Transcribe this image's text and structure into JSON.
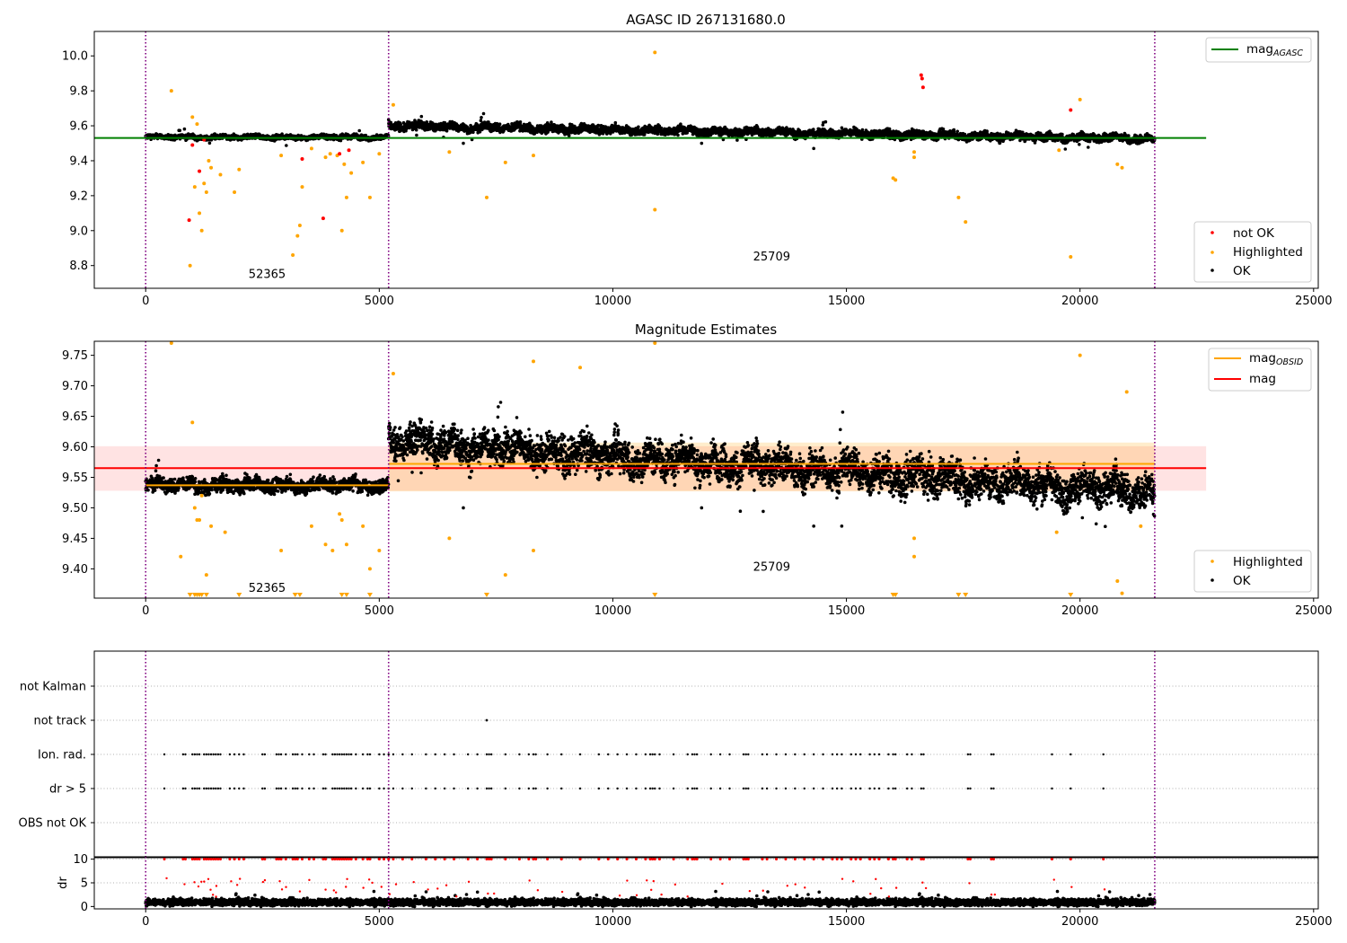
{
  "figure_title": "AGASC ID 267131680.0",
  "colors": {
    "ok": "#000000",
    "highlighted": "#ffa500",
    "not_ok": "#ff0000",
    "mag_agasc_line": "#008000",
    "mag_obsid_line": "#ffa500",
    "mag_line": "#ff0000",
    "obs_boundary": "#800080"
  },
  "chart_data": [
    {
      "type": "scatter",
      "title": "AGASC ID 267131680.0",
      "xlim": [
        -1100,
        25100
      ],
      "ylim": [
        8.67,
        10.14
      ],
      "xticks": [
        0,
        5000,
        10000,
        15000,
        20000,
        25000
      ],
      "yticks": [
        8.8,
        9.0,
        9.2,
        9.4,
        9.6,
        9.8,
        10.0
      ],
      "obs_boundaries": [
        0,
        5200,
        21600
      ],
      "obs_labels": [
        {
          "text": "52365",
          "x": 2600,
          "y": 8.73
        },
        {
          "text": "25709",
          "x": 13400,
          "y": 8.83
        }
      ],
      "reference_lines": [
        {
          "name": "mag_AGASC",
          "value": 9.53,
          "x": [
            -1100,
            22700
          ]
        }
      ],
      "segments": [
        {
          "x": [
            0,
            5200
          ],
          "base": 9.535,
          "spread": 0.012,
          "color": "ok"
        },
        {
          "x": [
            5200,
            21600
          ],
          "base": 9.6,
          "trend": -0.075,
          "spread": 0.02,
          "color": "ok"
        }
      ],
      "series": [
        {
          "name": "not OK",
          "points": [
            [
              930,
              9.06
            ],
            [
              1000,
              9.49
            ],
            [
              1150,
              9.34
            ],
            [
              1250,
              9.52
            ],
            [
              3350,
              9.41
            ],
            [
              3800,
              9.07
            ],
            [
              4150,
              9.44
            ],
            [
              4350,
              9.46
            ],
            [
              16600,
              9.89
            ],
            [
              16620,
              9.87
            ],
            [
              16640,
              9.82
            ],
            [
              19800,
              9.69
            ]
          ]
        },
        {
          "name": "Highlighted",
          "points": [
            [
              550,
              9.8
            ],
            [
              950,
              8.8
            ],
            [
              1000,
              9.65
            ],
            [
              1050,
              9.25
            ],
            [
              1100,
              9.61
            ],
            [
              1150,
              9.1
            ],
            [
              1200,
              9.0
            ],
            [
              1250,
              9.27
            ],
            [
              1300,
              9.22
            ],
            [
              1350,
              9.4
            ],
            [
              1400,
              9.36
            ],
            [
              1600,
              9.32
            ],
            [
              1900,
              9.22
            ],
            [
              2000,
              9.35
            ],
            [
              2900,
              9.43
            ],
            [
              3150,
              8.86
            ],
            [
              3250,
              8.97
            ],
            [
              3300,
              9.03
            ],
            [
              3350,
              9.25
            ],
            [
              3550,
              9.47
            ],
            [
              3850,
              9.42
            ],
            [
              3950,
              9.44
            ],
            [
              4100,
              9.43
            ],
            [
              4200,
              9.0
            ],
            [
              4250,
              9.38
            ],
            [
              4300,
              9.19
            ],
            [
              4400,
              9.33
            ],
            [
              4650,
              9.39
            ],
            [
              4800,
              9.19
            ],
            [
              5000,
              9.44
            ],
            [
              5300,
              9.72
            ],
            [
              6500,
              9.45
            ],
            [
              7300,
              9.19
            ],
            [
              7700,
              9.39
            ],
            [
              8300,
              9.43
            ],
            [
              10900,
              9.12
            ],
            [
              10900,
              10.02
            ],
            [
              16000,
              9.3
            ],
            [
              16050,
              9.29
            ],
            [
              16450,
              9.45
            ],
            [
              16450,
              9.42
            ],
            [
              17400,
              9.19
            ],
            [
              17550,
              9.05
            ],
            [
              19550,
              9.46
            ],
            [
              19800,
              8.85
            ],
            [
              20000,
              9.75
            ],
            [
              20800,
              9.38
            ],
            [
              20900,
              9.36
            ]
          ]
        },
        {
          "name": "OK",
          "points": [
            [
              6800,
              9.5
            ],
            [
              14300,
              9.47
            ],
            [
              11900,
              9.5
            ]
          ]
        }
      ],
      "legends": [
        {
          "position": "upper right",
          "entries": [
            "mag_AGASC"
          ]
        },
        {
          "position": "lower right",
          "entries": [
            "not OK",
            "Highlighted",
            "OK"
          ]
        }
      ]
    },
    {
      "type": "scatter",
      "title": "Magnitude Estimates",
      "xlim": [
        -1100,
        25100
      ],
      "ylim": [
        9.352,
        9.773
      ],
      "xticks": [
        0,
        5000,
        10000,
        15000,
        20000,
        25000
      ],
      "yticks": [
        9.4,
        9.45,
        9.5,
        9.55,
        9.6,
        9.65,
        9.7,
        9.75
      ],
      "obs_boundaries": [
        0,
        5200,
        21600
      ],
      "obs_labels": [
        {
          "text": "52365",
          "x": 2600,
          "y": 9.362
        },
        {
          "text": "25709",
          "x": 13400,
          "y": 9.397
        }
      ],
      "bands": [
        {
          "name": "mag",
          "x": [
            -1100,
            22700
          ],
          "y": [
            9.528,
            9.601
          ],
          "color": "mag_line"
        },
        {
          "name": "mag_OBSID 25709",
          "x": [
            5200,
            21600
          ],
          "y": [
            9.527,
            9.607
          ],
          "color": "mag_obsid_line"
        }
      ],
      "reference_lines": [
        {
          "name": "mag_OBSID",
          "value": 9.537,
          "x": [
            0,
            5200
          ]
        },
        {
          "name": "mag_OBSID",
          "value": 9.572,
          "x": [
            5200,
            21600
          ]
        },
        {
          "name": "mag",
          "value": 9.565,
          "x": [
            -1100,
            22700
          ]
        }
      ],
      "segments": [
        {
          "x": [
            0,
            5200
          ],
          "base": 9.537,
          "spread": 0.01,
          "color": "ok"
        },
        {
          "x": [
            5200,
            21600
          ],
          "base": 9.61,
          "trend": -0.085,
          "spread": 0.025,
          "color": "ok"
        }
      ],
      "series": [
        {
          "name": "Highlighted",
          "points": [
            [
              550,
              9.77
            ],
            [
              750,
              9.42
            ],
            [
              1000,
              9.64
            ],
            [
              1050,
              9.5
            ],
            [
              1100,
              9.48
            ],
            [
              1150,
              9.48
            ],
            [
              1200,
              9.52
            ],
            [
              1300,
              9.39
            ],
            [
              1400,
              9.47
            ],
            [
              1700,
              9.46
            ],
            [
              2900,
              9.43
            ],
            [
              3550,
              9.47
            ],
            [
              3850,
              9.44
            ],
            [
              4000,
              9.43
            ],
            [
              4150,
              9.49
            ],
            [
              4200,
              9.48
            ],
            [
              4300,
              9.44
            ],
            [
              4650,
              9.47
            ],
            [
              4800,
              9.4
            ],
            [
              5000,
              9.43
            ],
            [
              5300,
              9.72
            ],
            [
              6500,
              9.45
            ],
            [
              7700,
              9.39
            ],
            [
              8300,
              9.43
            ],
            [
              8300,
              9.74
            ],
            [
              9300,
              9.73
            ],
            [
              10900,
              9.77
            ],
            [
              16450,
              9.45
            ],
            [
              16450,
              9.42
            ],
            [
              19500,
              9.46
            ],
            [
              20000,
              9.75
            ],
            [
              20800,
              9.38
            ],
            [
              20900,
              9.36
            ],
            [
              21000,
              9.69
            ],
            [
              21300,
              9.47
            ]
          ]
        },
        {
          "name": "Highlighted (below axis)",
          "points": [
            [
              950,
              9.355
            ],
            [
              1050,
              9.355
            ],
            [
              1100,
              9.355
            ],
            [
              1150,
              9.355
            ],
            [
              1200,
              9.355
            ],
            [
              1300,
              9.355
            ],
            [
              2000,
              9.355
            ],
            [
              3200,
              9.355
            ],
            [
              3300,
              9.355
            ],
            [
              4200,
              9.355
            ],
            [
              4300,
              9.355
            ],
            [
              4800,
              9.355
            ],
            [
              7300,
              9.355
            ],
            [
              10900,
              9.355
            ],
            [
              16000,
              9.355
            ],
            [
              16050,
              9.355
            ],
            [
              17400,
              9.355
            ],
            [
              17550,
              9.355
            ],
            [
              19800,
              9.355
            ]
          ]
        },
        {
          "name": "OK",
          "points": [
            [
              6800,
              9.5
            ],
            [
              14300,
              9.47
            ],
            [
              14900,
              9.47
            ],
            [
              11900,
              9.5
            ]
          ]
        }
      ],
      "legends": [
        {
          "position": "upper right",
          "entries": [
            "mag_OBSID",
            "mag"
          ]
        },
        {
          "position": "lower right",
          "entries": [
            "Highlighted",
            "OK"
          ]
        }
      ]
    },
    {
      "type": "scatter",
      "title": "",
      "xlim": [
        -1100,
        25100
      ],
      "categories": [
        "not Kalman",
        "not track",
        "Ion. rad.",
        "dr > 5",
        "OBS not OK"
      ],
      "obs_boundaries": [
        0,
        5200,
        21600
      ],
      "flag_times": [
        400,
        800,
        850,
        1000,
        1050,
        1100,
        1150,
        1250,
        1300,
        1350,
        1400,
        1450,
        1500,
        1550,
        1600,
        1800,
        1900,
        2000,
        2100,
        2500,
        2550,
        2800,
        2850,
        2900,
        3000,
        3150,
        3200,
        3250,
        3350,
        3500,
        3600,
        3800,
        3850,
        4000,
        4050,
        4100,
        4150,
        4200,
        4250,
        4300,
        4350,
        4400,
        4500,
        4650,
        4750,
        4800,
        5000,
        5100,
        5200,
        5300,
        5500,
        5700,
        6000,
        6200,
        6400,
        6600,
        6900,
        7100,
        7300,
        7350,
        7400,
        7700,
        8000,
        8200,
        8300,
        8350,
        8600,
        8900,
        9300,
        9700,
        9900,
        10100,
        10300,
        10500,
        10700,
        10800,
        10850,
        10900,
        11000,
        11300,
        11600,
        11700,
        11750,
        11800,
        12100,
        12300,
        12500,
        12800,
        12850,
        12900,
        13200,
        13300,
        13500,
        13700,
        13900,
        14100,
        14300,
        14500,
        14700,
        14800,
        14900,
        15100,
        15200,
        15300,
        15500,
        15600,
        15700,
        15900,
        16000,
        16050,
        16300,
        16400,
        16600,
        16650,
        17600,
        17650,
        18100,
        18150,
        19400,
        19800,
        20500
      ],
      "not_track_times": [
        7300
      ]
    },
    {
      "type": "scatter",
      "title": "",
      "ylabel": "dr",
      "xlim": [
        -1100,
        25100
      ],
      "ylim": [
        -0.5,
        10.5
      ],
      "xticks": [
        0,
        5000,
        10000,
        15000,
        20000,
        25000
      ],
      "yticks": [
        0,
        5,
        10
      ],
      "obs_boundaries": [
        0,
        5200,
        21600
      ],
      "segments": [
        {
          "x": [
            0,
            21600
          ],
          "base": 0.9,
          "spread": 0.35,
          "color": "ok"
        }
      ]
    }
  ]
}
